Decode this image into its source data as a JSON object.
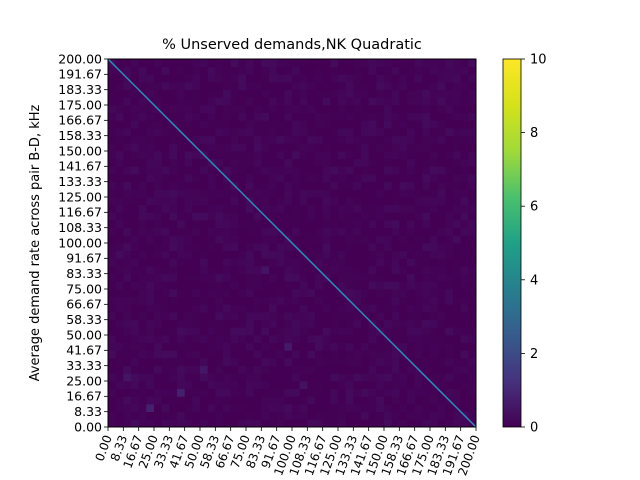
{
  "chart_data": {
    "type": "heatmap",
    "title": "% Unserved demands,NK Quadratic",
    "xlabel": "",
    "ylabel": "Average demand rate across pair B-D, kHz",
    "x_ticks": [
      "0.00",
      "8.33",
      "16.67",
      "25.00",
      "33.33",
      "41.67",
      "50.00",
      "58.33",
      "66.67",
      "75.00",
      "83.33",
      "91.67",
      "100.00",
      "108.33",
      "116.67",
      "125.00",
      "133.33",
      "141.67",
      "150.00",
      "158.33",
      "166.67",
      "175.00",
      "183.33",
      "191.67",
      "200.00"
    ],
    "y_ticks": [
      "0.00",
      "8.33",
      "16.67",
      "25.00",
      "33.33",
      "41.67",
      "50.00",
      "58.33",
      "66.67",
      "75.00",
      "83.33",
      "91.67",
      "100.00",
      "108.33",
      "116.67",
      "125.00",
      "133.33",
      "141.67",
      "150.00",
      "158.33",
      "166.67",
      "175.00",
      "183.33",
      "191.67",
      "200.00"
    ],
    "xlim": [
      0,
      200
    ],
    "ylim": [
      0,
      200
    ],
    "grid_size": 48,
    "base_value": 0,
    "noise_max": 0.25,
    "hot_cells": [
      {
        "col": 5,
        "row": 2,
        "value": 0.8
      },
      {
        "col": 9,
        "row": 4,
        "value": 0.8
      },
      {
        "col": 12,
        "row": 7,
        "value": 0.55
      },
      {
        "col": 23,
        "row": 10,
        "value": 0.6
      },
      {
        "col": 20,
        "row": 20,
        "value": 0.45
      },
      {
        "col": 2,
        "row": 6,
        "value": 0.5
      },
      {
        "col": 25,
        "row": 5,
        "value": 0.4
      }
    ],
    "diagonal_line": {
      "from": [
        0,
        200
      ],
      "to": [
        200,
        0
      ],
      "color": "#2a8fbd"
    },
    "colorbar": {
      "min": 0,
      "max": 10,
      "ticks": [
        0,
        2,
        4,
        6,
        8,
        10
      ],
      "colormap": "viridis"
    },
    "grid": false
  }
}
